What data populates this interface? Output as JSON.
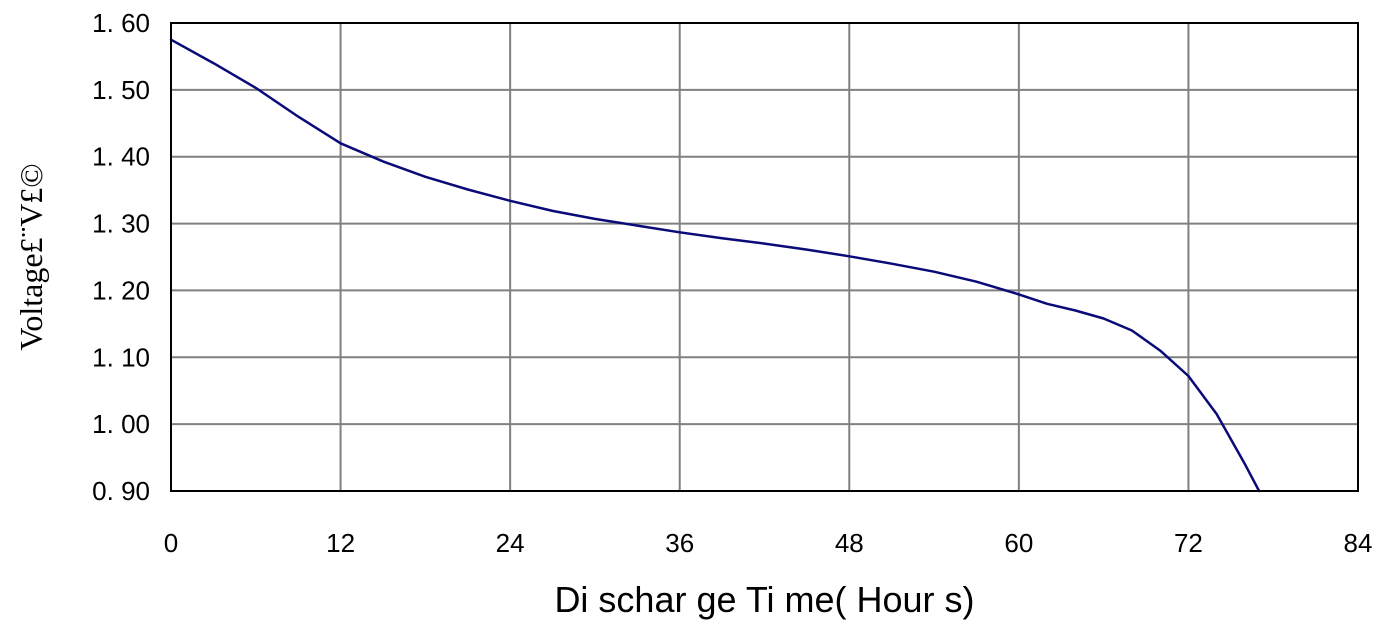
{
  "chart_data": {
    "type": "line",
    "title": "",
    "xlabel": "Di schar ge  Ti me( Hour s)",
    "ylabel": "Voltage£¨V£©",
    "xlim": [
      0,
      84
    ],
    "ylim": [
      0.9,
      1.6
    ],
    "x_ticks": [
      0,
      12,
      24,
      36,
      48,
      60,
      72,
      84
    ],
    "x_tick_labels": [
      "0",
      "12",
      "24",
      "36",
      "48",
      "60",
      "72",
      "84"
    ],
    "y_ticks": [
      0.9,
      1.0,
      1.1,
      1.2,
      1.3,
      1.4,
      1.5,
      1.6
    ],
    "y_tick_labels": [
      "0. 90",
      "1. 00",
      "1. 10",
      "1. 20",
      "1. 30",
      "1. 40",
      "1. 50",
      "1. 60"
    ],
    "grid": true,
    "legend": "none",
    "series": [
      {
        "color": "#0a0a78",
        "x": [
          0,
          3,
          6,
          9,
          12,
          15,
          18,
          21,
          24,
          27,
          30,
          33,
          36,
          39,
          42,
          45,
          48,
          51,
          54,
          57,
          60,
          62,
          64,
          66,
          68,
          70,
          72,
          74,
          76,
          77
        ],
        "y": [
          1.575,
          1.54,
          1.503,
          1.46,
          1.42,
          1.393,
          1.37,
          1.351,
          1.334,
          1.319,
          1.307,
          1.297,
          1.287,
          1.278,
          1.27,
          1.261,
          1.251,
          1.24,
          1.228,
          1.213,
          1.194,
          1.18,
          1.17,
          1.158,
          1.14,
          1.11,
          1.072,
          1.015,
          0.94,
          0.9
        ]
      }
    ]
  }
}
